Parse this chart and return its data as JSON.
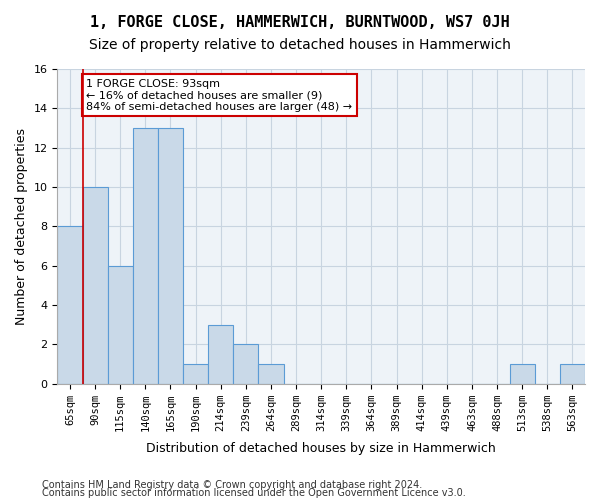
{
  "title": "1, FORGE CLOSE, HAMMERWICH, BURNTWOOD, WS7 0JH",
  "subtitle": "Size of property relative to detached houses in Hammerwich",
  "xlabel": "Distribution of detached houses by size in Hammerwich",
  "ylabel": "Number of detached properties",
  "bar_labels": [
    "65sqm",
    "90sqm",
    "115sqm",
    "140sqm",
    "165sqm",
    "190sqm",
    "214sqm",
    "239sqm",
    "264sqm",
    "289sqm",
    "314sqm",
    "339sqm",
    "364sqm",
    "389sqm",
    "414sqm",
    "439sqm",
    "463sqm",
    "488sqm",
    "513sqm",
    "538sqm",
    "563sqm"
  ],
  "bar_values": [
    8,
    10,
    6,
    13,
    13,
    1,
    3,
    2,
    1,
    0,
    0,
    0,
    0,
    0,
    0,
    0,
    0,
    0,
    1,
    0,
    1
  ],
  "bar_color": "#c9d9e8",
  "bar_edge_color": "#5b9bd5",
  "property_line_x": 1,
  "property_line_color": "#cc0000",
  "annotation_text": "1 FORGE CLOSE: 93sqm\n← 16% of detached houses are smaller (9)\n84% of semi-detached houses are larger (48) →",
  "annotation_box_color": "#ffffff",
  "annotation_box_edge_color": "#cc0000",
  "ylim": [
    0,
    16
  ],
  "yticks": [
    0,
    2,
    4,
    6,
    8,
    10,
    12,
    14,
    16
  ],
  "footer_line1": "Contains HM Land Registry data © Crown copyright and database right 2024.",
  "footer_line2": "Contains public sector information licensed under the Open Government Licence v3.0.",
  "grid_color": "#c8d4e0",
  "bg_color": "#eef3f8",
  "title_fontsize": 11,
  "subtitle_fontsize": 10,
  "tick_fontsize": 7.5,
  "ylabel_fontsize": 9,
  "xlabel_fontsize": 9,
  "footer_fontsize": 7
}
